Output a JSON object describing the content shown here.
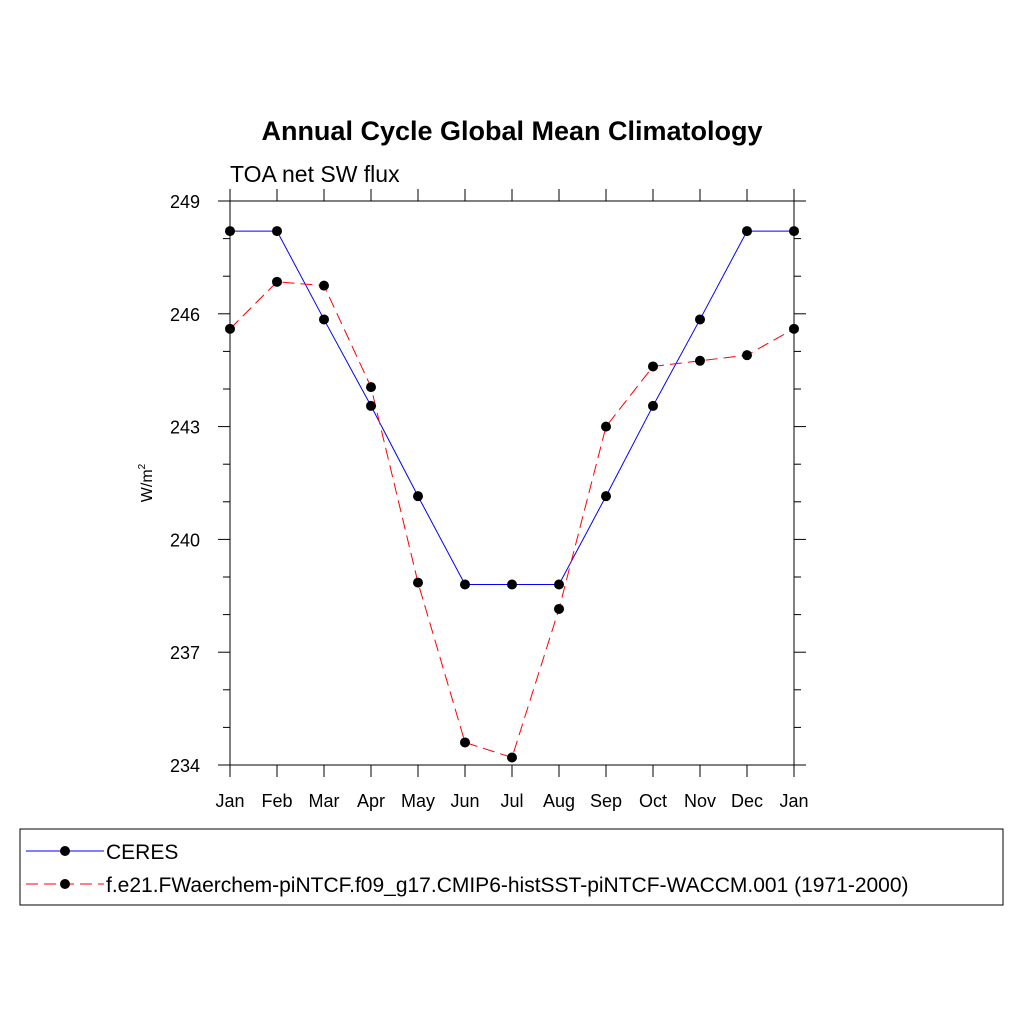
{
  "chart_data": {
    "type": "line",
    "title": "Annual Cycle Global Mean Climatology",
    "subtitle": "TOA net SW flux",
    "xlabel": "",
    "ylabel": "W/m",
    "ylabel_superscript": "2",
    "categories": [
      "Jan",
      "Feb",
      "Mar",
      "Apr",
      "May",
      "Jun",
      "Jul",
      "Aug",
      "Sep",
      "Oct",
      "Nov",
      "Dec",
      "Jan"
    ],
    "ylim": [
      234,
      249
    ],
    "yticks": [
      234,
      237,
      240,
      243,
      246,
      249
    ],
    "series": [
      {
        "name": "CERES",
        "color": "#0000ff",
        "dash": "solid",
        "values": [
          248.2,
          248.2,
          245.85,
          243.55,
          241.15,
          238.8,
          238.8,
          238.8,
          241.15,
          243.55,
          245.85,
          248.2,
          248.2
        ]
      },
      {
        "name": "f.e21.FWaerchem-piNTCF.f09_g17.CMIP6-histSST-piNTCF-WACCM.001 (1971-2000)",
        "color": "#ff0000",
        "dash": "dashed",
        "values": [
          245.6,
          246.85,
          246.75,
          244.05,
          238.85,
          234.6,
          234.2,
          238.15,
          243.0,
          244.6,
          244.75,
          244.9,
          245.6
        ]
      }
    ],
    "legend_position": "bottom"
  }
}
